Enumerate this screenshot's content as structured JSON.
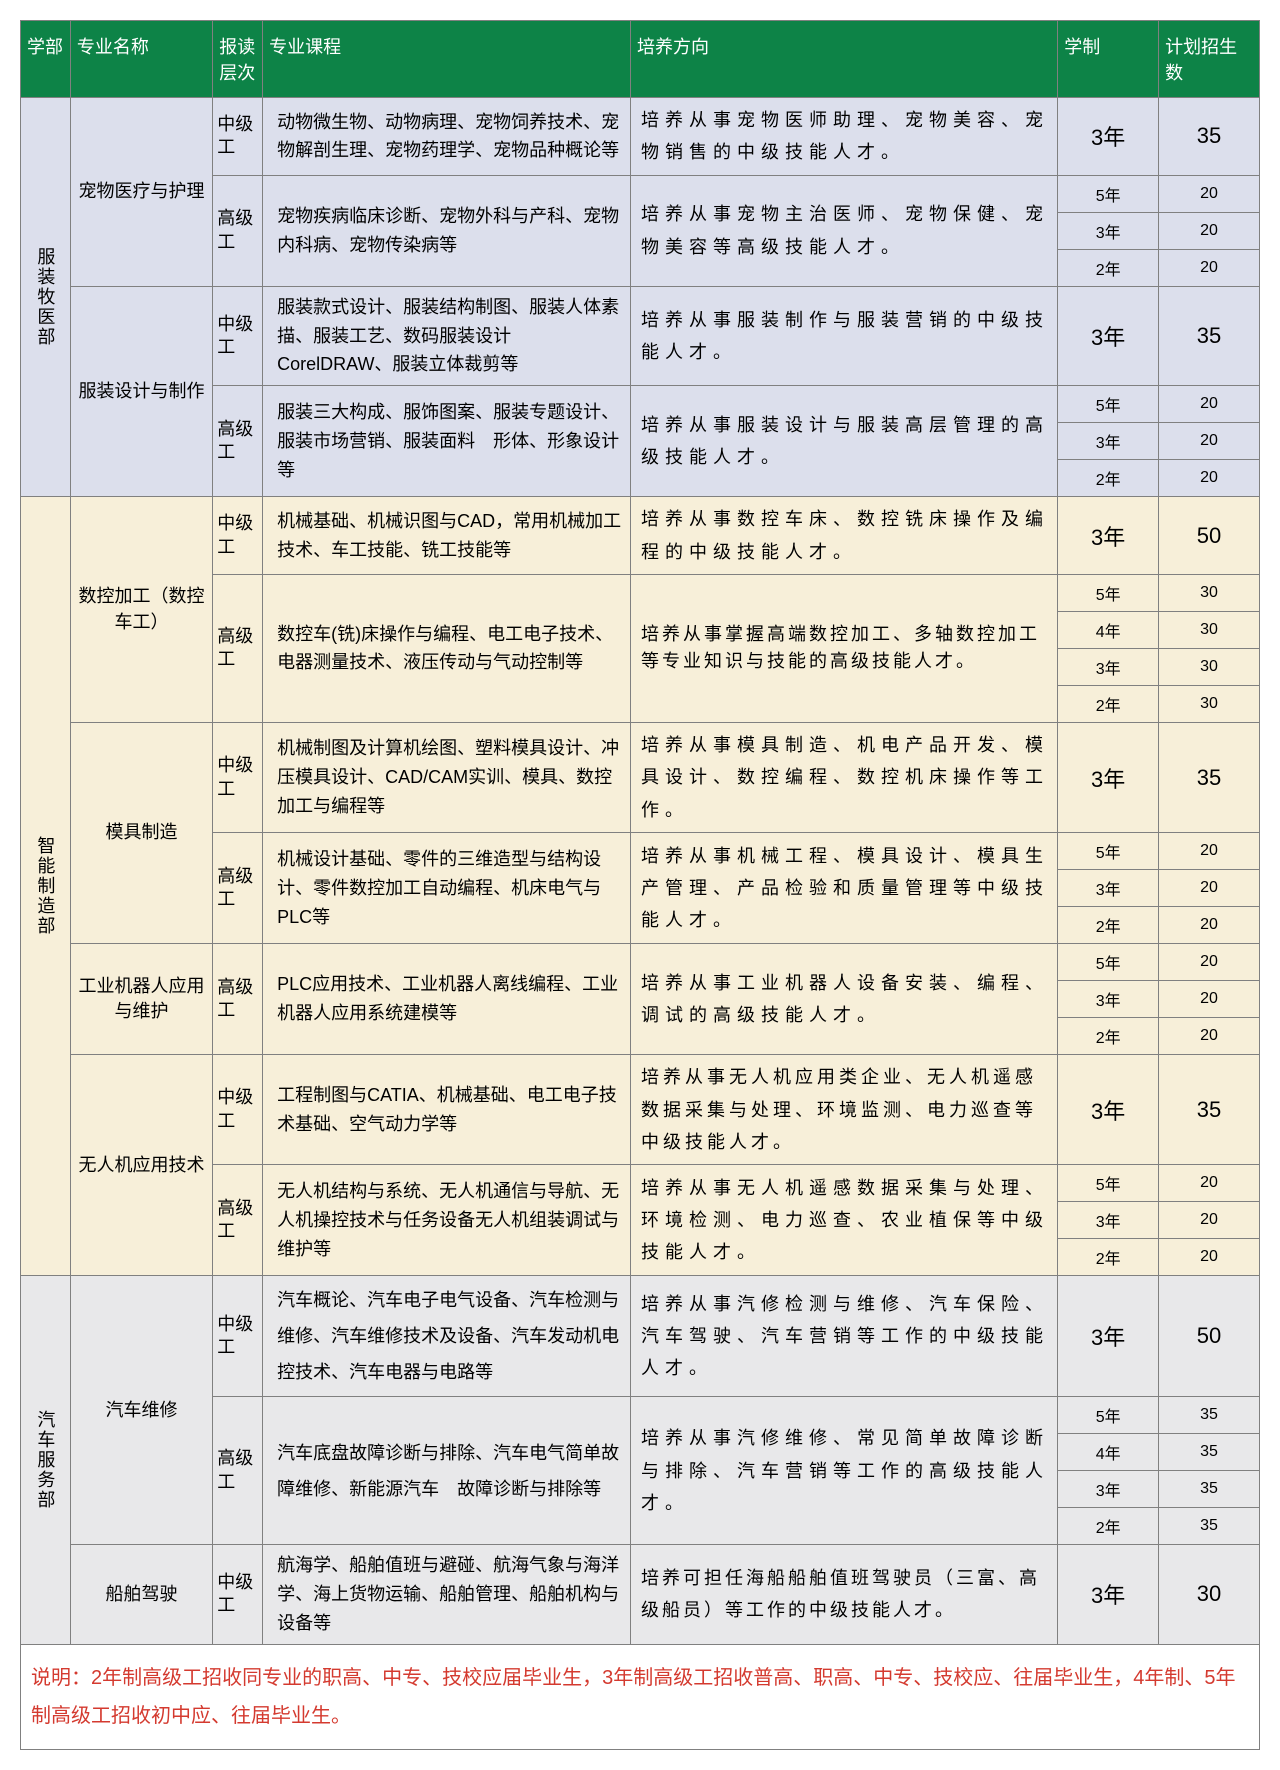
{
  "colors": {
    "header_bg": "#0d8347",
    "header_fg": "#ffffff",
    "grid": "#808080",
    "bg_a": "#dcdfec",
    "bg_b": "#f7efd9",
    "bg_c": "#e8e8ea",
    "note_color": "#d43a2f"
  },
  "headers": {
    "dept": "学部",
    "major": "专业名称",
    "level": "报读层次",
    "course": "专业课程",
    "direction": "培养方向",
    "duration": "学制",
    "plan": "计划招生数"
  },
  "levels": {
    "mid": "中级工",
    "high": "高级工"
  },
  "durations": {
    "y2": "2年",
    "y3": "3年",
    "y4": "4年",
    "y5": "5年"
  },
  "depts": {
    "a": "服装牧医部",
    "b": "智能制造部",
    "c": "汽车服务部"
  },
  "majors": {
    "a1": "宠物医疗与护理",
    "a2": "服装设计与制作",
    "b1": "数控加工（数控车工）",
    "b2": "模具制造",
    "b3": "工业机器人应用与维护",
    "b4": "无人机应用技术",
    "c1": "汽车维修",
    "c2": "船舶驾驶"
  },
  "courses": {
    "a1m": "动物微生物、动物病理、宠物饲养技术、宠物解剖生理、宠物药理学、宠物品种概论等",
    "a1h": "宠物疾病临床诊断、宠物外科与产科、宠物内科病、宠物传染病等",
    "a2m": "服装款式设计、服装结构制图、服装人体素描、服装工艺、数码服装设计CorelDRAW、服装立体裁剪等",
    "a2h": "服装三大构成、服饰图案、服装专题设计、服装市场营销、服装面料　形体、形象设计等",
    "b1m": "机械基础、机械识图与CAD，常用机械加工技术、车工技能、铣工技能等",
    "b1h": "数控车(铣)床操作与编程、电工电子技术、电器测量技术、液压传动与气动控制等",
    "b2m": "机械制图及计算机绘图、塑料模具设计、冲压模具设计、CAD/CAM实训、模具、数控加工与编程等",
    "b2h": "机械设计基础、零件的三维造型与结构设计、零件数控加工自动编程、机床电气与PLC等",
    "b3h": "PLC应用技术、工业机器人离线编程、工业机器人应用系统建模等",
    "b4m": "工程制图与CATIA、机械基础、电工电子技术基础、空气动力学等",
    "b4h": "无人机结构与系统、无人机通信与导航、无人机操控技术与任务设备无人机组装调试与维护等",
    "c1m": "汽车概论、汽车电子电气设备、汽车检测与维修、汽车维修技术及设备、汽车发动机电控技术、汽车电器与电路等",
    "c1h": "汽车底盘故障诊断与排除、汽车电气简单故障维修、新能源汽车　故障诊断与排除等",
    "c2m": "航海学、船舶值班与避碰、航海气象与海洋学、海上货物运输、船舶管理、船舶机构与设备等"
  },
  "dirs": {
    "a1m": "培养从事宠物医师助理、宠物美容、宠物销售的中级技能人才。",
    "a1h": "培养从事宠物主治医师、宠物保健、宠物美容等高级技能人才。",
    "a2m": "培养从事服装制作与服装营销的中级技能人才。",
    "a2h": "培养从事服装设计与服装高层管理的高级技能人才。",
    "b1m": "培养从事数控车床、数控铣床操作及编程的中级技能人才。",
    "b1h": "培养从事掌握高端数控加工、多轴数控加工等专业知识与技能的高级技能人才。",
    "b2m": "培养从事模具制造、机电产品开发、模具设计、数控编程、数控机床操作等工作。",
    "b2h": "培养从事机械工程、模具设计、模具生产管理、产品检验和质量管理等中级技能人才。",
    "b3h": "培养从事工业机器人设备安装、编程、调试的高级技能人才。",
    "b4m": "培养从事无人机应用类企业、无人机遥感数据采集与处理、环境监测、电力巡查等中级技能人才。",
    "b4h": "培养从事无人机遥感数据采集与处理、环境检测、电力巡查、农业植保等中级技能人才。",
    "c1m": "培养从事汽修检测与维修、汽车保险、汽车驾驶、汽车营销等工作的中级技能人才。",
    "c1h": "培养从事汽修维修、常见简单故障诊断与排除、汽车营销等工作的高级技能人才。",
    "c2m": "培养可担任海船船舶值班驾驶员（三富、高级船员）等工作的中级技能人才。"
  },
  "plans": {
    "p20": "20",
    "p30": "30",
    "p35": "35",
    "p50": "50"
  },
  "note": "说明：2年制高级工招收同专业的职高、中专、技校应届毕业生，3年制高级工招收普高、职高、中专、技校应、往届毕业生，4年制、5年制高级工招收初中应、往届毕业生。"
}
